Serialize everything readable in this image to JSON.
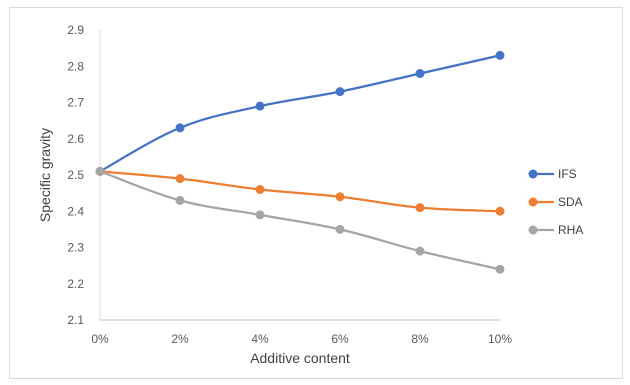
{
  "chart_data": {
    "type": "line",
    "categories": [
      "0%",
      "2%",
      "4%",
      "6%",
      "8%",
      "10%"
    ],
    "xlabel": "Additive content",
    "ylabel": "Specific gravity",
    "ylim": [
      2.1,
      2.9
    ],
    "yticks": [
      "2.1",
      "2.2",
      "2.3",
      "2.4",
      "2.5",
      "2.6",
      "2.7",
      "2.8",
      "2.9"
    ],
    "grid": false,
    "legend_position": "right",
    "series": [
      {
        "name": "IFS",
        "color": "#4472C4",
        "values": [
          2.51,
          2.63,
          2.69,
          2.73,
          2.78,
          2.83
        ]
      },
      {
        "name": "SDA",
        "color": "#ED7D31",
        "values": [
          2.51,
          2.49,
          2.46,
          2.44,
          2.41,
          2.4
        ]
      },
      {
        "name": "RHA",
        "color": "#A5A5A5",
        "values": [
          2.51,
          2.43,
          2.39,
          2.35,
          2.29,
          2.24
        ]
      }
    ]
  }
}
